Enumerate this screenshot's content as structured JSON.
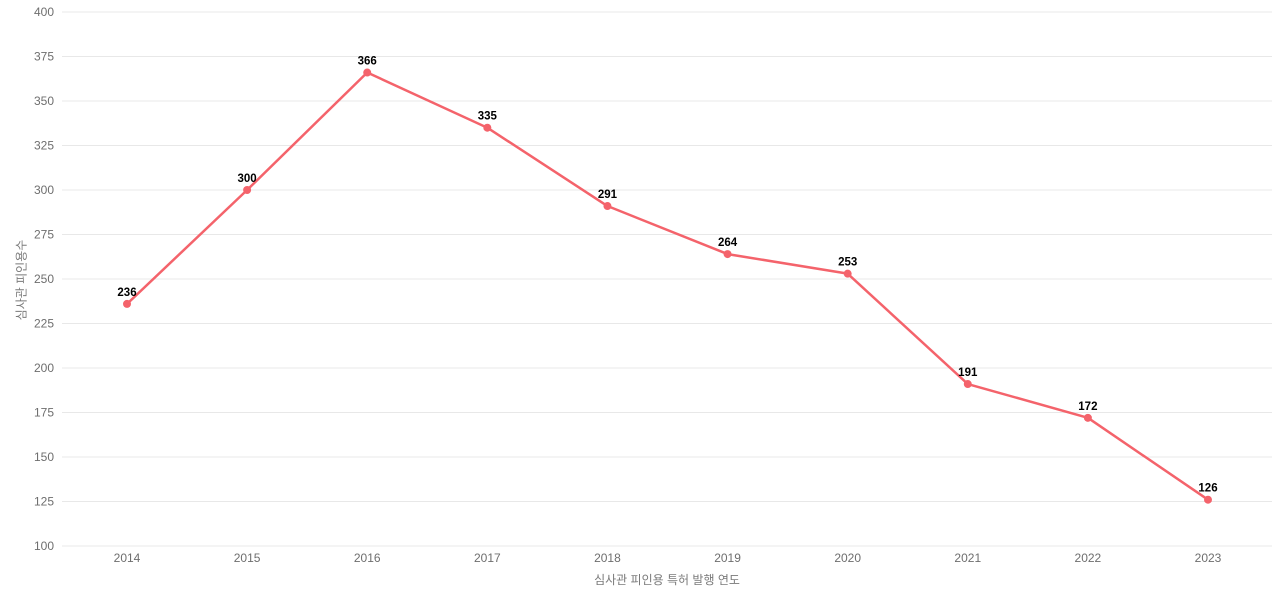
{
  "chart_data": {
    "type": "line",
    "title": "",
    "categories": [
      "2014",
      "2015",
      "2016",
      "2017",
      "2018",
      "2019",
      "2020",
      "2021",
      "2022",
      "2023"
    ],
    "values": [
      236,
      300,
      366,
      335,
      291,
      264,
      253,
      191,
      172,
      126
    ],
    "data_labels": [
      "236",
      "300",
      "366",
      "335",
      "291",
      "264",
      "253",
      "191",
      "172",
      "126"
    ],
    "xlabel": "심사관 피인용 특허 발행 연도",
    "ylabel": "심사관 피인용수",
    "ylim": [
      100,
      400
    ],
    "ytick_step": 25,
    "yticks": [
      100,
      125,
      150,
      175,
      200,
      225,
      250,
      275,
      300,
      325,
      350,
      375,
      400
    ],
    "grid": true,
    "legend": "none",
    "colors": {
      "line": "#f4636b",
      "marker": "#f4636b",
      "grid": "#e8e8e8",
      "tick_label": "#6e6e6e",
      "axis_title": "#7a7a7a",
      "data_label": "#000000",
      "background": "#ffffff"
    }
  }
}
